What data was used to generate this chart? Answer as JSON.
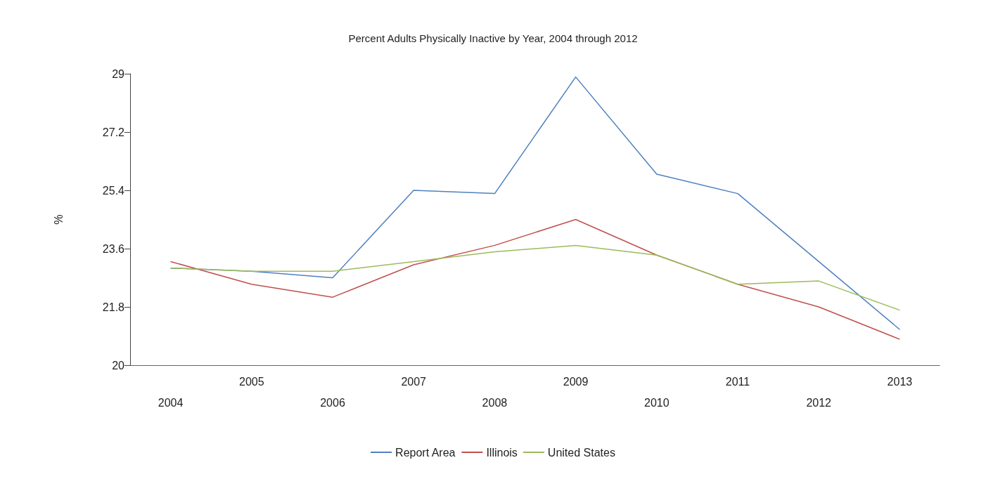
{
  "chart_data": {
    "type": "line",
    "title": "Percent Adults Physically Inactive by Year, 2004 through 2012",
    "ylabel": "%",
    "categories": [
      "2004",
      "2005",
      "2006",
      "2007",
      "2008",
      "2009",
      "2010",
      "2011",
      "2012",
      "2013"
    ],
    "series": [
      {
        "name": "Report Area",
        "color": "#4f81bd",
        "values": [
          23.0,
          22.9,
          22.7,
          25.4,
          25.3,
          28.9,
          25.9,
          25.3,
          23.2,
          21.1
        ]
      },
      {
        "name": "Illinois",
        "color": "#c0504d",
        "values": [
          23.2,
          22.5,
          22.1,
          23.1,
          23.7,
          24.5,
          23.4,
          22.5,
          21.8,
          20.8
        ]
      },
      {
        "name": "United States",
        "color": "#9bbb59",
        "values": [
          23.0,
          22.9,
          22.9,
          23.2,
          23.5,
          23.7,
          23.4,
          22.5,
          22.6,
          21.7
        ]
      }
    ],
    "ylim": [
      20,
      29
    ],
    "yticks": [
      20,
      21.8,
      23.6,
      25.4,
      27.2,
      29
    ],
    "grid": false,
    "legend": "bottom",
    "marker": "none",
    "line_style": "solid"
  }
}
